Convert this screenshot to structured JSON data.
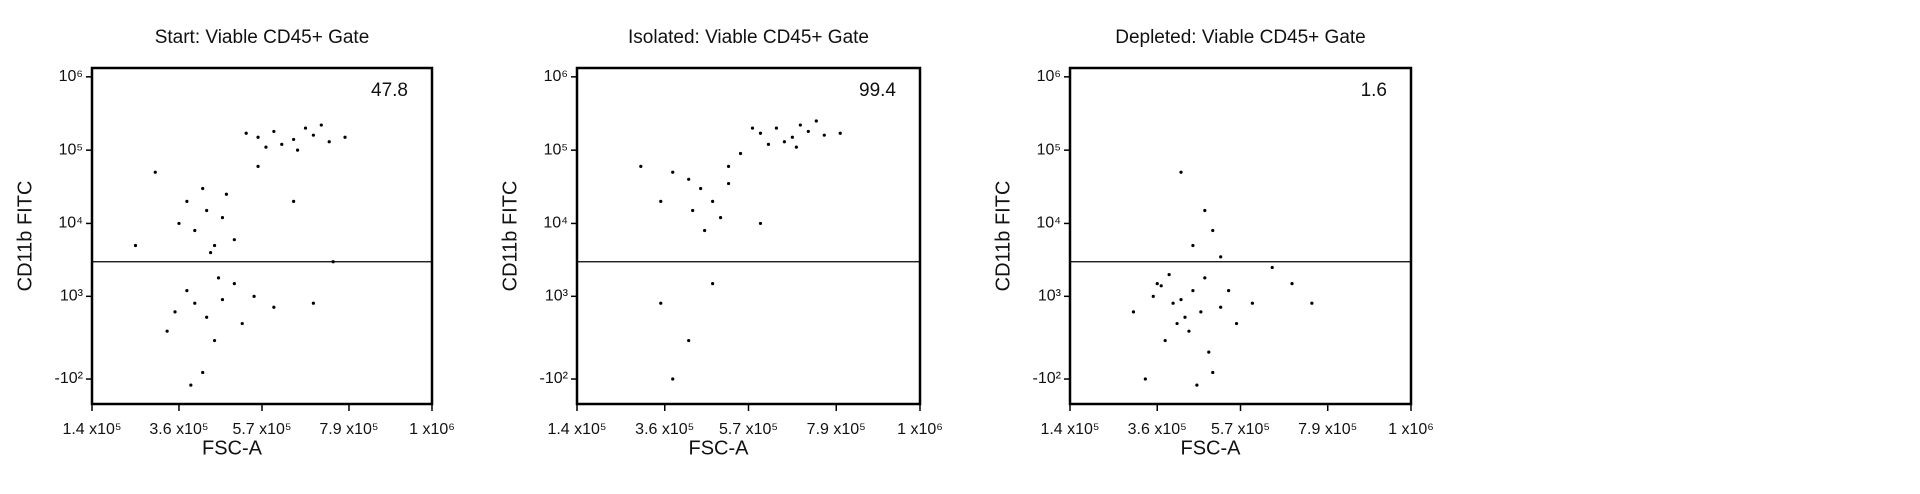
{
  "chart_data": [
    {
      "type": "scatter",
      "title": "Start: Viable CD45+ Gate",
      "x_label": "FSC-A",
      "y_label": "CD11b FITC",
      "yscale": "arcsinh",
      "color": "#000000",
      "xlim": [
        140000,
        1000000
      ],
      "ylim": [
        -350,
        1320000
      ],
      "xticks": [
        {
          "value": 140000,
          "label": "1.4 x10⁵"
        },
        {
          "value": 360000,
          "label": "3.6 x10⁵"
        },
        {
          "value": 570000,
          "label": "5.7 x10⁵"
        },
        {
          "value": 790000,
          "label": "7.9 x10⁵"
        },
        {
          "value": 1000000,
          "label": "1 x10⁶"
        }
      ],
      "yticks": [
        {
          "value": -100,
          "label": "-10²"
        },
        {
          "value": 1000,
          "label": "10³"
        },
        {
          "value": 10000,
          "label": "10⁴"
        },
        {
          "value": 100000,
          "label": "10⁵"
        },
        {
          "value": 1000000,
          "label": "10⁶"
        }
      ],
      "gate_y": 3000,
      "gate_percent": 47.8,
      "x": [
        560000,
        600000,
        650000,
        700000,
        620000,
        680000,
        740000,
        580000,
        530000,
        720000,
        660000,
        780000,
        400000,
        430000,
        450000,
        380000,
        470000,
        420000,
        500000,
        360000,
        440000,
        480000,
        400000,
        430000,
        380000,
        450000,
        350000,
        470000,
        420000,
        500000,
        330000,
        460000,
        520000,
        390000,
        550000,
        600000,
        300000,
        650000,
        750000,
        700000,
        250000,
        560000
      ],
      "values": [
        150000,
        180000,
        140000,
        160000,
        120000,
        200000,
        130000,
        110000,
        170000,
        220000,
        100000,
        150000,
        8000,
        15000,
        5000,
        20000,
        12000,
        30000,
        6000,
        10000,
        4000,
        25000,
        800,
        500,
        1200,
        200,
        600,
        900,
        -50,
        1500,
        300,
        1800,
        400,
        -150,
        1000,
        700,
        50000,
        20000,
        3000,
        800,
        5000,
        60000
      ]
    },
    {
      "type": "scatter",
      "title": "Isolated: Viable CD45+ Gate",
      "x_label": "FSC-A",
      "y_label": "CD11b FITC",
      "yscale": "arcsinh",
      "color": "#000000",
      "xlim": [
        140000,
        1000000
      ],
      "ylim": [
        -350,
        1320000
      ],
      "xticks": [
        {
          "value": 140000,
          "label": "1.4 x10⁵"
        },
        {
          "value": 360000,
          "label": "3.6 x10⁵"
        },
        {
          "value": 570000,
          "label": "5.7 x10⁵"
        },
        {
          "value": 790000,
          "label": "7.9 x10⁵"
        },
        {
          "value": 1000000,
          "label": "1 x10⁶"
        }
      ],
      "yticks": [
        {
          "value": -100,
          "label": "-10²"
        },
        {
          "value": 1000,
          "label": "10³"
        },
        {
          "value": 10000,
          "label": "10⁴"
        },
        {
          "value": 100000,
          "label": "10⁵"
        },
        {
          "value": 1000000,
          "label": "10⁶"
        }
      ],
      "gate_y": 3000,
      "gate_percent": 99.4,
      "x": [
        600000,
        640000,
        680000,
        720000,
        660000,
        700000,
        760000,
        620000,
        580000,
        740000,
        690000,
        800000,
        550000,
        520000,
        450000,
        480000,
        420000,
        500000,
        380000,
        460000,
        430000,
        520000,
        350000,
        300000,
        600000,
        350000,
        420000,
        480000,
        380000
      ],
      "values": [
        170000,
        200000,
        150000,
        180000,
        130000,
        220000,
        160000,
        120000,
        200000,
        250000,
        110000,
        170000,
        90000,
        60000,
        30000,
        20000,
        40000,
        12000,
        50000,
        8000,
        15000,
        35000,
        20000,
        60000,
        10000,
        800,
        200,
        1500,
        -100
      ]
    },
    {
      "type": "scatter",
      "title": "Depleted: Viable CD45+ Gate",
      "x_label": "FSC-A",
      "y_label": "CD11b FITC",
      "yscale": "arcsinh",
      "color": "#000000",
      "xlim": [
        140000,
        1000000
      ],
      "ylim": [
        -350,
        1320000
      ],
      "xticks": [
        {
          "value": 140000,
          "label": "1.4 x10⁵"
        },
        {
          "value": 360000,
          "label": "3.6 x10⁵"
        },
        {
          "value": 570000,
          "label": "5.7 x10⁵"
        },
        {
          "value": 790000,
          "label": "7.9 x10⁵"
        },
        {
          "value": 1000000,
          "label": "1 x10⁶"
        }
      ],
      "yticks": [
        {
          "value": -100,
          "label": "-10²"
        },
        {
          "value": 1000,
          "label": "10³"
        },
        {
          "value": 10000,
          "label": "10⁴"
        },
        {
          "value": 100000,
          "label": "10⁵"
        },
        {
          "value": 1000000,
          "label": "10⁶"
        }
      ],
      "gate_y": 3000,
      "gate_percent": 1.6,
      "x": [
        400000,
        430000,
        450000,
        380000,
        470000,
        420000,
        500000,
        360000,
        440000,
        480000,
        410000,
        460000,
        350000,
        520000,
        390000,
        540000,
        330000,
        490000,
        560000,
        600000,
        370000,
        450000,
        480000,
        420000,
        500000,
        520000,
        700000,
        750000,
        650000,
        300000
      ],
      "values": [
        800,
        500,
        1200,
        200,
        600,
        900,
        -50,
        1500,
        300,
        1800,
        400,
        -150,
        1000,
        700,
        2000,
        1200,
        -100,
        100,
        400,
        800,
        1400,
        5000,
        15000,
        50000,
        8000,
        3500,
        1500,
        800,
        2500,
        600
      ]
    }
  ]
}
